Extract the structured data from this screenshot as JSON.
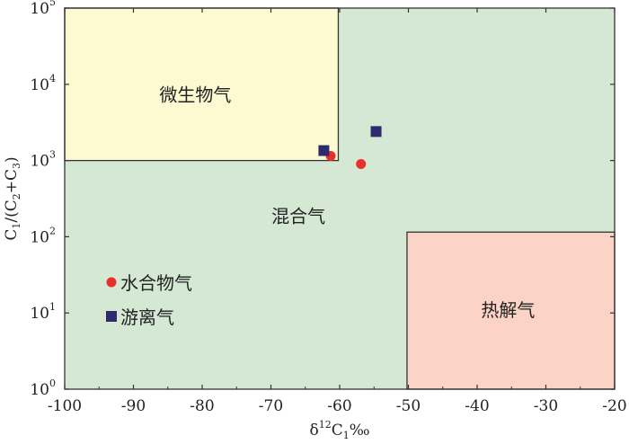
{
  "chart_data": {
    "type": "scatter",
    "xlabel": {
      "base": "δ",
      "sup": "12",
      "main": "C",
      "sub": "1",
      "unit": "‰"
    },
    "ylabel": {
      "parts": [
        {
          "t": "C",
          "sub": "1"
        },
        {
          "t": "/(C"
        },
        {
          "t": "",
          "sub": "2"
        },
        {
          "t": "+C"
        },
        {
          "t": "",
          "sub": "3"
        },
        {
          "t": ")"
        }
      ]
    },
    "x_range": [
      -100,
      -20
    ],
    "x_ticks": [
      "-100",
      "-90",
      "-80",
      "-70",
      "-60",
      "-50",
      "-40",
      "-30",
      "-20"
    ],
    "x_tick_values": [
      -100,
      -90,
      -80,
      -70,
      -60,
      -50,
      -40,
      -30,
      -20
    ],
    "y_scale": "log",
    "y_range": [
      1,
      100000
    ],
    "y_ticks": [
      {
        "value": 1,
        "base": "10",
        "exp": "0"
      },
      {
        "value": 10,
        "base": "10",
        "exp": "1"
      },
      {
        "value": 100,
        "base": "10",
        "exp": "2"
      },
      {
        "value": 1000,
        "base": "10",
        "exp": "3"
      },
      {
        "value": 10000,
        "base": "10",
        "exp": "4"
      },
      {
        "value": 100000,
        "base": "10",
        "exp": "5"
      }
    ],
    "regions": [
      {
        "name": "混合气",
        "x": [
          -100,
          -20
        ],
        "y": [
          1,
          100000
        ],
        "color": "#d5e8d4",
        "label_at": [
          -66,
          180
        ]
      },
      {
        "name": "微生物气",
        "x": [
          -100,
          -60.2
        ],
        "y": [
          1000,
          100000
        ],
        "color": "#fdfad2",
        "label_at": [
          -81,
          7000
        ]
      },
      {
        "name": "热解气",
        "x": [
          -50.2,
          -20
        ],
        "y": [
          1,
          115
        ],
        "color": "#fbd3c7",
        "label_at": [
          -35.5,
          10.5
        ]
      }
    ],
    "series": [
      {
        "name": "水合物气",
        "marker": "circle",
        "color": "#e8302a",
        "points": [
          {
            "x": -61.3,
            "y": 1150
          },
          {
            "x": -56.9,
            "y": 900
          }
        ]
      },
      {
        "name": "游离气",
        "marker": "square",
        "color": "#2e2a6e",
        "points": [
          {
            "x": -62.3,
            "y": 1350
          },
          {
            "x": -54.7,
            "y": 2400
          }
        ]
      }
    ],
    "legend_placement": "bottom-left",
    "grid": false
  }
}
